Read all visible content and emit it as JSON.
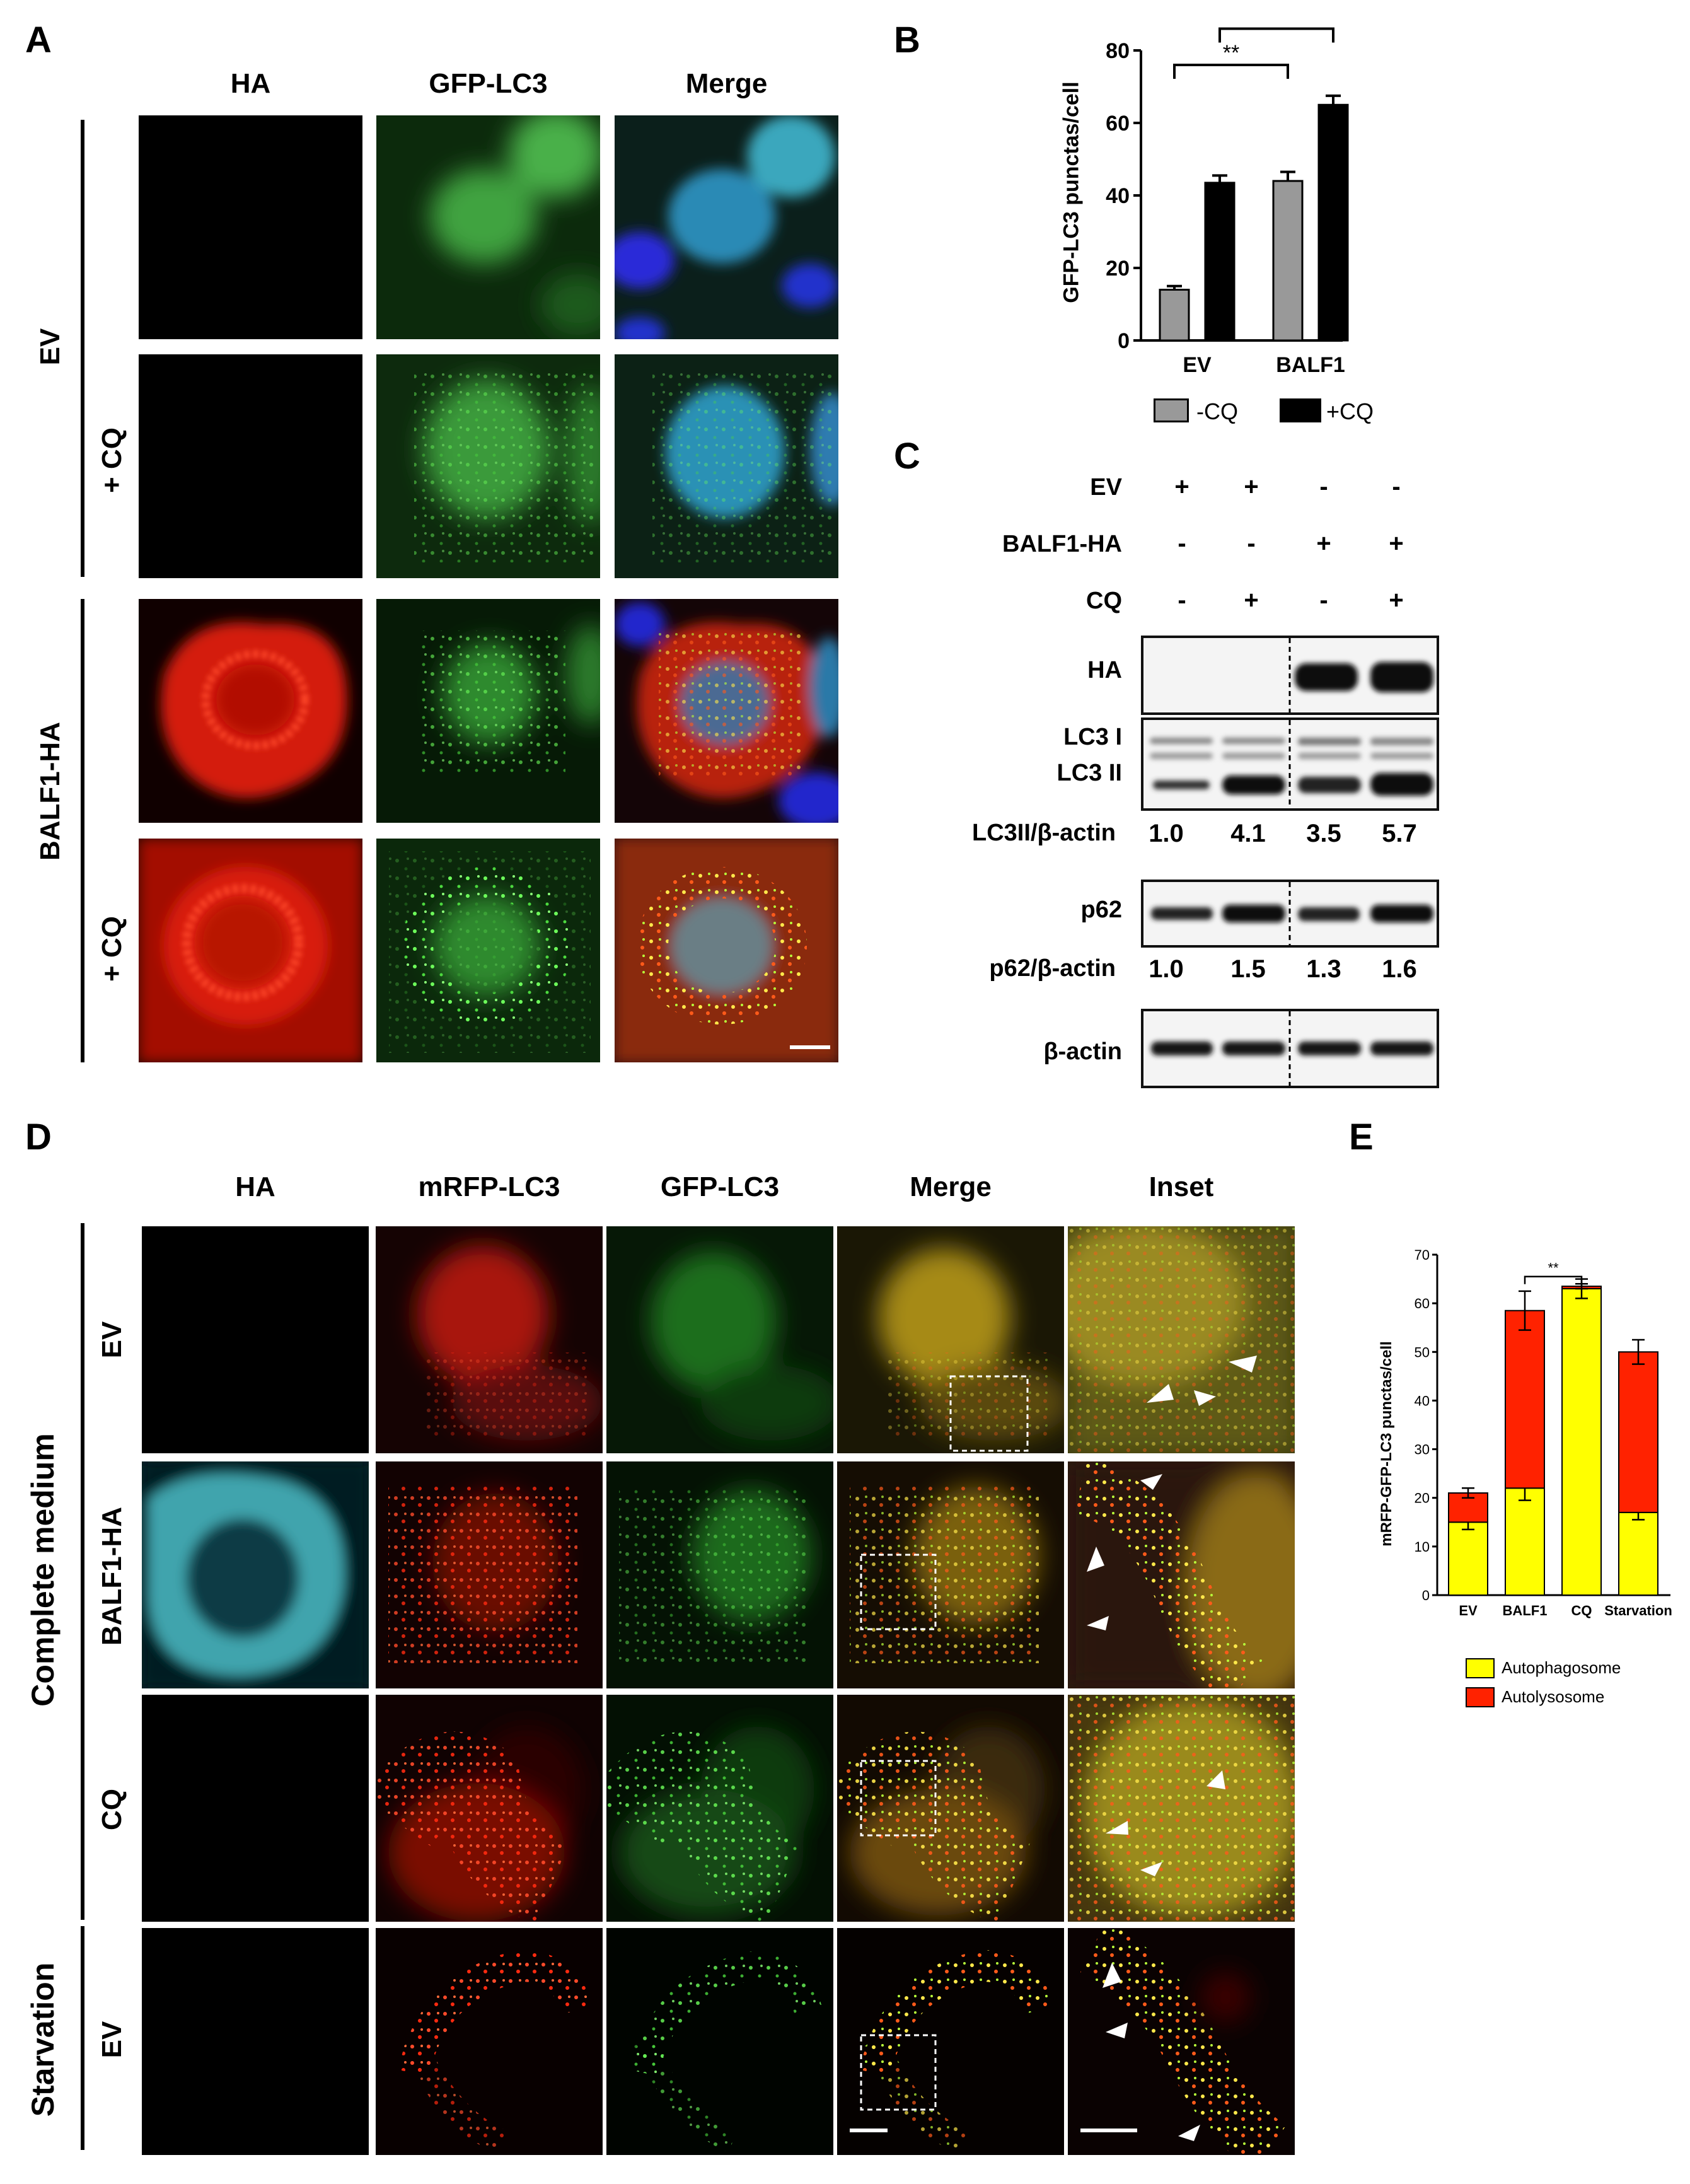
{
  "panel_letters": {
    "A": "A",
    "B": "B",
    "C": "C",
    "D": "D",
    "E": "E"
  },
  "panelA": {
    "columns": [
      "HA",
      "GFP-LC3",
      "Merge"
    ],
    "group_labels": [
      "EV",
      "BALF1-HA"
    ],
    "cq_labels": [
      "+ CQ",
      "+ CQ"
    ]
  },
  "panelB": {
    "ylabel": "GFP-LC3 punctas/cell",
    "yticks": [
      "80",
      "60",
      "40",
      "20",
      "0"
    ],
    "categories": [
      "EV",
      "BALF1"
    ],
    "legend": [
      "-CQ",
      "+CQ"
    ],
    "sig": [
      "**",
      "**"
    ]
  },
  "panelC": {
    "header_rows": [
      {
        "label": "EV",
        "signs": [
          "+",
          "+",
          "-",
          "-"
        ]
      },
      {
        "label": "BALF1-HA",
        "signs": [
          "-",
          "-",
          "+",
          "+"
        ]
      },
      {
        "label": "CQ",
        "signs": [
          "-",
          "+",
          "-",
          "+"
        ]
      }
    ],
    "blots": {
      "ha": "HA",
      "lc3_1": "LC3 I",
      "lc3_2": "LC3 II",
      "p62": "p62",
      "actin": "β-actin"
    },
    "ratio_rows": [
      {
        "label": "LC3II/β-actin",
        "values": [
          "1.0",
          "4.1",
          "3.5",
          "5.7"
        ]
      },
      {
        "label": "p62/β-actin",
        "values": [
          "1.0",
          "1.5",
          "1.3",
          "1.6"
        ]
      }
    ]
  },
  "panelD": {
    "columns": [
      "HA",
      "mRFP-LC3",
      "GFP-LC3",
      "Merge",
      "Inset"
    ],
    "row_labels": [
      "EV",
      "BALF1-HA",
      "CQ",
      "EV"
    ],
    "condition_labels": [
      "Complete medium",
      "Starvation"
    ]
  },
  "panelE": {
    "ylabel": "mRFP-GFP-LC3 punctas/cell",
    "yticks": [
      "70",
      "60",
      "50",
      "40",
      "30",
      "20",
      "10",
      "0"
    ],
    "categories": [
      "EV",
      "BALF1",
      "CQ",
      "Starvation"
    ],
    "legend": [
      "Autophagosome",
      "Autolysosome"
    ],
    "sig": "**"
  },
  "colors": {
    "yellow": "#ffff00",
    "red": "#ff2200",
    "gray": "#999999",
    "black": "#000000"
  },
  "chart_data": [
    {
      "type": "bar",
      "title": "",
      "ylabel": "GFP-LC3 punctas/cell",
      "categories": [
        "EV",
        "BALF1"
      ],
      "ylim": [
        0,
        80
      ],
      "series": [
        {
          "name": "-CQ",
          "values": [
            14,
            44
          ],
          "errors": [
            1,
            2.5
          ]
        },
        {
          "name": "+CQ",
          "values": [
            43.5,
            65
          ],
          "errors": [
            2,
            2.5
          ]
        }
      ],
      "annotations": [
        "**",
        "**"
      ],
      "legend_position": "bottom"
    },
    {
      "type": "bar",
      "title": "",
      "stacked": true,
      "ylabel": "mRFP-GFP-LC3 punctas/cell",
      "categories": [
        "EV",
        "BALF1",
        "CQ",
        "Starvation"
      ],
      "ylim": [
        0,
        70
      ],
      "series": [
        {
          "name": "Autophagosome",
          "values": [
            15,
            22,
            63,
            17
          ],
          "errors": [
            1.5,
            2.5,
            2,
            1.5
          ]
        },
        {
          "name": "Autolysosome",
          "values": [
            6,
            36.5,
            0.5,
            33
          ],
          "errors": [
            1,
            4,
            0.5,
            2.5
          ]
        }
      ],
      "annotations": [
        "**"
      ],
      "legend_position": "bottom"
    }
  ]
}
